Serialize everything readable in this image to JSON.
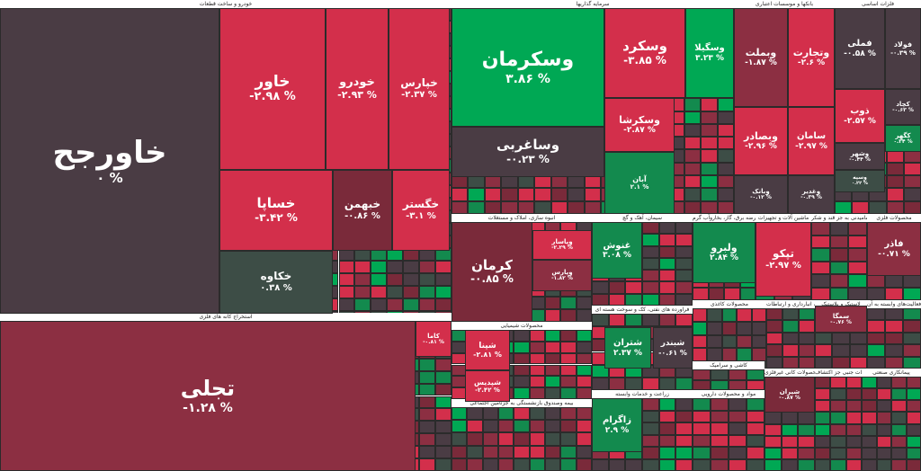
{
  "colors": {
    "strong_red": "#d32f4b",
    "dark_red": "#7a2a3a",
    "maroon": "#8c2f42",
    "neutral": "#4a3c44",
    "neutral_green": "#3d4d46",
    "strong_green": "#00a854",
    "mid_green": "#138a4e",
    "border": "#2b2b2b"
  },
  "sectors": [
    {
      "label": "خودرو و ساخت قطعات"
    },
    {
      "label": "سرمایه گذاریها"
    },
    {
      "label": "بانکها و موسسات اعتباری"
    },
    {
      "label": "فلزات اساسی"
    },
    {
      "label": "استخراج کانه های فلزی"
    },
    {
      "label": "انبوه سازی، املاک و مستغلات"
    },
    {
      "label": "محصولات شیمیایی"
    },
    {
      "label": "زراعت و خدمات وابسته"
    },
    {
      "label": "بیمه وصندوق بازنشستگی به جزتامین اجتماعی"
    },
    {
      "label": "مواد و محصولات دارویی"
    },
    {
      "label": "فراورده های نفتی، کک و سوخت هسته ای"
    },
    {
      "label": "سیمان، آهک و گچ"
    },
    {
      "label": "عرضه برق، گاز، بخاروآب گرم"
    },
    {
      "label": "ماشین آلات و تجهیزات"
    },
    {
      "label": "محصولات غذایی و آشامیدنی به جز قند و شکر"
    },
    {
      "label": "محصولات فلزی"
    },
    {
      "label": "محصولات کاغذی"
    },
    {
      "label": "کاشی و سرامیک"
    },
    {
      "label": "حمل و نقل، انبارداری و ارتباطات"
    },
    {
      "label": "لاستیک و پلاستیک"
    },
    {
      "label": "رایانه و فعالیت‌های وابسته به آن"
    },
    {
      "label": "سایر محصولات کانی غیرفلزی"
    },
    {
      "label": "استخراج نفت گاز و خدمات جنبی جز اکتشاف"
    },
    {
      "label": "پیمانکاری صنعتی"
    }
  ],
  "tiles": [
    {
      "symbol": "خاورجح",
      "change": "۰ %",
      "tone": "neutral"
    },
    {
      "symbol": "خاور",
      "change": "-۲.۹۸ %",
      "tone": "strong_red"
    },
    {
      "symbol": "خودرو",
      "change": "-۲.۹۳ %",
      "tone": "strong_red"
    },
    {
      "symbol": "خپارس",
      "change": "-۲.۳۷ %",
      "tone": "strong_red"
    },
    {
      "symbol": "خساپا",
      "change": "-۳.۴۲ %",
      "tone": "strong_red"
    },
    {
      "symbol": "خبهمن",
      "change": "-۰.۸۶ %",
      "tone": "dark_red"
    },
    {
      "symbol": "خگستر",
      "change": "-۳.۱ %",
      "tone": "strong_red"
    },
    {
      "symbol": "خکاوه",
      "change": "۰.۳۸ %",
      "tone": "neutral_green"
    },
    {
      "symbol": "وسکرمان",
      "change": "۳.۸۶ %",
      "tone": "strong_green"
    },
    {
      "symbol": "وساغربی",
      "change": "-۰.۲۳ %",
      "tone": "neutral"
    },
    {
      "symbol": "وسکرد",
      "change": "-۳.۸۵ %",
      "tone": "strong_red"
    },
    {
      "symbol": "وسگیلا",
      "change": "۳.۲۳ %",
      "tone": "strong_green"
    },
    {
      "symbol": "وسکرشا",
      "change": "-۲.۸۷ %",
      "tone": "strong_red"
    },
    {
      "symbol": "آبان",
      "change": "۲.۱ %",
      "tone": "mid_green"
    },
    {
      "symbol": "وبملت",
      "change": "-۱.۸۷ %",
      "tone": "maroon"
    },
    {
      "symbol": "وتجارت",
      "change": "-۲.۶ %",
      "tone": "strong_red"
    },
    {
      "symbol": "وبصادر",
      "change": "-۲.۹۶ %",
      "tone": "strong_red"
    },
    {
      "symbol": "سامان",
      "change": "-۲.۹۷ %",
      "tone": "strong_red"
    },
    {
      "symbol": "فملی",
      "change": "-۰.۵۸ %",
      "tone": "neutral"
    },
    {
      "symbol": "فولاد",
      "change": "-۰.۳۹ %",
      "tone": "neutral"
    },
    {
      "symbol": "ذوب",
      "change": "-۲.۵۷ %",
      "tone": "strong_red"
    },
    {
      "symbol": "کچاد",
      "change": "-۰.۶۳ %",
      "tone": "neutral"
    },
    {
      "symbol": "کگهر",
      "change": "۰.۳۴ %",
      "tone": "mid_green"
    },
    {
      "symbol": "کرمان",
      "change": "-۰.۸۵ %",
      "tone": "dark_red"
    },
    {
      "symbol": "تجلی",
      "change": "-۱.۲۸ %",
      "tone": "maroon"
    },
    {
      "symbol": "شپنا",
      "change": "-۲.۸۱ %",
      "tone": "strong_red"
    },
    {
      "symbol": "شتران",
      "change": "۲.۳۷ %",
      "tone": "mid_green"
    },
    {
      "symbol": "شبندر",
      "change": "-۰.۶۱ %",
      "tone": "neutral"
    },
    {
      "symbol": "شپدیس",
      "change": "-۲.۴۲ %",
      "tone": "strong_red"
    },
    {
      "symbol": "غنوش",
      "change": "۳.۰۸ %",
      "tone": "mid_green"
    },
    {
      "symbol": "ولبرو",
      "change": "۲.۸۴ %",
      "tone": "mid_green"
    },
    {
      "symbol": "تپکو",
      "change": "-۲.۹۷ %",
      "tone": "strong_red"
    },
    {
      "symbol": "فاذر",
      "change": "-۰.۷۱ %",
      "tone": "maroon"
    },
    {
      "symbol": "زاگرام",
      "change": "۲.۹ %",
      "tone": "mid_green"
    },
    {
      "symbol": "شیران",
      "change": "-۰.۸۷ %",
      "tone": "dark_red"
    },
    {
      "symbol": "کاما",
      "change": "-۰.۸۱ %",
      "tone": "strong_red"
    },
    {
      "symbol": "سمگا",
      "change": "-۰.۷۶ %",
      "tone": "maroon"
    },
    {
      "symbol": "وبانک",
      "change": "-۰.۱۲ %",
      "tone": "neutral"
    },
    {
      "symbol": "وغدیر",
      "change": "-۰.۳۹ %",
      "tone": "neutral"
    },
    {
      "symbol": "وشهر",
      "change": "-۰.۴۴ %",
      "tone": "neutral"
    },
    {
      "symbol": "وسپه",
      "change": "۰.۲۲ %",
      "tone": "neutral_green"
    },
    {
      "symbol": "وپاسار",
      "change": "-۲.۲۹ %",
      "tone": "strong_red"
    },
    {
      "symbol": "وپارس",
      "change": "-۱.۸۲ %",
      "tone": "maroon"
    }
  ]
}
